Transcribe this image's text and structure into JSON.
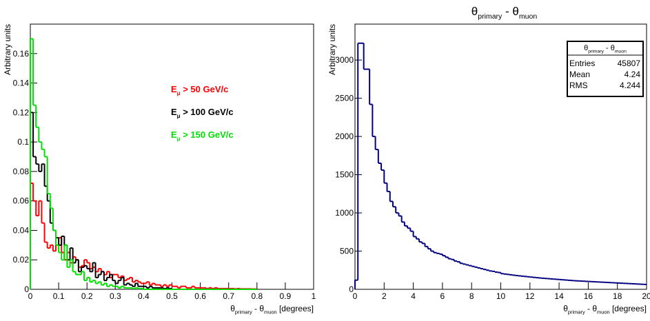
{
  "chart_data": [
    {
      "type": "histogram",
      "ylabel": "Arbitrary units",
      "xlabel": [
        "θ",
        "primary",
        " - θ",
        "muon",
        " [degrees]"
      ],
      "bins": [
        0,
        0.01,
        0.02,
        0.03,
        0.04,
        0.05,
        0.06,
        0.07,
        0.08,
        0.09,
        0.1,
        0.11,
        0.12,
        0.13,
        0.14,
        0.15,
        0.16,
        0.17,
        0.18,
        0.19,
        0.2,
        0.21,
        0.22,
        0.23,
        0.24,
        0.25,
        0.26,
        0.27,
        0.28,
        0.29,
        0.3,
        0.31,
        0.32,
        0.33,
        0.34,
        0.35,
        0.36,
        0.37,
        0.38,
        0.39,
        0.4,
        0.41,
        0.42,
        0.43,
        0.44,
        0.45,
        0.46,
        0.47,
        0.48,
        0.49,
        0.5,
        0.51,
        0.52,
        0.53,
        0.54,
        0.55,
        0.56,
        0.57,
        0.58,
        0.59,
        0.6,
        0.61,
        0.62,
        0.63,
        0.64,
        0.65,
        0.66,
        0.67,
        0.68,
        0.69,
        0.7,
        0.71,
        0.72,
        0.73,
        0.74,
        0.75,
        0.76,
        0.77,
        0.78,
        0.79,
        0.8
      ],
      "series": [
        {
          "name": [
            "E",
            "μ",
            " > 50 GeV/c"
          ],
          "color": "#ff0000",
          "values": [
            0.072,
            0.06,
            0.05,
            0.06,
            0.045,
            0.032,
            0.028,
            0.03,
            0.026,
            0.03,
            0.035,
            0.025,
            0.02,
            0.025,
            0.018,
            0.022,
            0.02,
            0.015,
            0.016,
            0.02,
            0.018,
            0.014,
            0.015,
            0.012,
            0.014,
            0.012,
            0.01,
            0.012,
            0.008,
            0.01,
            0.01,
            0.008,
            0.009,
            0.006,
            0.007,
            0.008,
            0.005,
            0.006,
            0.005,
            0.004,
            0.004,
            0.005,
            0.003,
            0.004,
            0.003,
            0.003,
            0.002,
            0.003,
            0.002,
            0.003,
            0.002,
            0.002,
            0.001,
            0.002,
            0.002,
            0.001,
            0.001,
            0.002,
            0.001,
            0.001,
            0.001,
            0.001,
            0.0005,
            0.001,
            0.0005,
            0.001,
            0.0005,
            0.0005,
            0.0005,
            0.0005,
            0.0005,
            0.0005,
            0.0003,
            0.0005,
            0.0003,
            0.0003,
            0.0003,
            0.0003,
            0.0002,
            0.0002
          ]
        },
        {
          "name": [
            "E",
            "μ",
            " > 100 GeV/c"
          ],
          "color": "#000000",
          "values": [
            0.12,
            0.09,
            0.085,
            0.08,
            0.085,
            0.07,
            0.06,
            0.045,
            0.04,
            0.035,
            0.03,
            0.036,
            0.03,
            0.02,
            0.028,
            0.018,
            0.02,
            0.012,
            0.015,
            0.016,
            0.014,
            0.012,
            0.018,
            0.008,
            0.01,
            0.012,
            0.006,
            0.008,
            0.01,
            0.006,
            0.004,
            0.006,
            0.008,
            0.003,
            0.004,
            0.003,
            0.002,
            0.004,
            0.002,
            0.002,
            0.002,
            0.001,
            0.002,
            0.001,
            0.001,
            0.001,
            0.001,
            0.0005,
            0.001,
            0.0005,
            0,
            0,
            0,
            0,
            0,
            0,
            0,
            0,
            0,
            0,
            0,
            0,
            0,
            0,
            0,
            0,
            0,
            0,
            0,
            0,
            0,
            0,
            0,
            0,
            0,
            0,
            0,
            0,
            0,
            0
          ]
        },
        {
          "name": [
            "E",
            "μ",
            " > 150 GeV/c"
          ],
          "color": "#00e000",
          "values": [
            0.17,
            0.125,
            0.11,
            0.1,
            0.095,
            0.09,
            0.065,
            0.055,
            0.04,
            0.03,
            0.025,
            0.02,
            0.03,
            0.015,
            0.02,
            0.012,
            0.01,
            0.01,
            0.012,
            0.006,
            0.008,
            0.005,
            0.006,
            0.004,
            0.005,
            0.003,
            0.004,
            0.002,
            0.003,
            0.002,
            0.002,
            0.001,
            0.002,
            0.001,
            0.001,
            0.001,
            0.0005,
            0.001,
            0.0005,
            0.0005,
            0,
            0,
            0,
            0,
            0,
            0,
            0,
            0,
            0,
            0,
            0,
            0,
            0,
            0,
            0,
            0,
            0,
            0,
            0,
            0,
            0,
            0,
            0,
            0,
            0,
            0,
            0,
            0,
            0,
            0,
            0,
            0,
            0,
            0,
            0,
            0,
            0,
            0,
            0,
            0
          ]
        }
      ],
      "xlim": [
        0,
        1
      ],
      "xticks": [
        0,
        0.1,
        0.2,
        0.3,
        0.4,
        0.5,
        0.6,
        0.7,
        0.8,
        0.9,
        1
      ],
      "ylim": [
        0,
        0.18
      ],
      "yticks": [
        0,
        0.02,
        0.04,
        0.06,
        0.08,
        0.1,
        0.12,
        0.14,
        0.16
      ],
      "grid": false
    },
    {
      "type": "histogram",
      "title": [
        "θ",
        "primary",
        " - θ",
        "muon"
      ],
      "ylabel": "Arbitrary units",
      "xlabel": [
        "θ",
        "primary",
        " - θ",
        "muon",
        " [degrees]"
      ],
      "bins": [
        0,
        0.2,
        0.4,
        0.6,
        0.8,
        1,
        1.2,
        1.4,
        1.6,
        1.8,
        2,
        2.2,
        2.4,
        2.6,
        2.8,
        3,
        3.2,
        3.4,
        3.6,
        3.8,
        4,
        4.2,
        4.4,
        4.6,
        4.8,
        5,
        5.2,
        5.4,
        5.6,
        5.8,
        6,
        6.2,
        6.4,
        6.6,
        6.8,
        7,
        7.2,
        7.4,
        7.6,
        7.8,
        8,
        8.2,
        8.4,
        8.6,
        8.8,
        9,
        9.2,
        9.4,
        9.6,
        9.8,
        10,
        10.2,
        10.4,
        10.6,
        10.8,
        11,
        11.2,
        11.4,
        11.6,
        11.8,
        12,
        12.2,
        12.4,
        12.6,
        12.8,
        13,
        13.2,
        13.4,
        13.6,
        13.8,
        14,
        14.2,
        14.4,
        14.6,
        14.8,
        15,
        15.2,
        15.4,
        15.6,
        15.8,
        16,
        16.2,
        16.4,
        16.6,
        16.8,
        17,
        17.2,
        17.4,
        17.6,
        17.8,
        18,
        18.2,
        18.4,
        18.6,
        18.8,
        19,
        19.2,
        19.4,
        19.6,
        19.8,
        20
      ],
      "series": [
        {
          "color": "#000080",
          "values": [
            120,
            3220,
            3220,
            2880,
            2880,
            2420,
            2000,
            1830,
            1650,
            1560,
            1390,
            1280,
            1150,
            1080,
            1000,
            960,
            880,
            830,
            800,
            760,
            690,
            660,
            620,
            600,
            560,
            530,
            500,
            480,
            470,
            460,
            440,
            420,
            400,
            390,
            370,
            360,
            340,
            330,
            320,
            310,
            300,
            290,
            280,
            270,
            260,
            250,
            240,
            235,
            225,
            220,
            205,
            200,
            195,
            190,
            185,
            180,
            176,
            172,
            168,
            164,
            160,
            156,
            152,
            148,
            145,
            142,
            139,
            136,
            133,
            130,
            127,
            124,
            121,
            118,
            115,
            112,
            110,
            108,
            106,
            104,
            102,
            100,
            98,
            96,
            94,
            92,
            90,
            88,
            86,
            84,
            82,
            80,
            78,
            76,
            74,
            72,
            70,
            68,
            66,
            64
          ]
        }
      ],
      "stats": {
        "title": [
          "θ",
          "primary",
          " - θ",
          "muon"
        ],
        "rows": [
          {
            "label": "Entries",
            "value": 45807
          },
          {
            "label": "Mean",
            "value": 4.24
          },
          {
            "label": "RMS",
            "value": 4.244
          }
        ]
      },
      "xlim": [
        0,
        20
      ],
      "xticks": [
        0,
        2,
        4,
        6,
        8,
        10,
        12,
        14,
        16,
        18,
        20
      ],
      "ylim": [
        0,
        3470
      ],
      "yticks": [
        0,
        500,
        1000,
        1500,
        2000,
        2500,
        3000
      ],
      "grid": false
    }
  ]
}
